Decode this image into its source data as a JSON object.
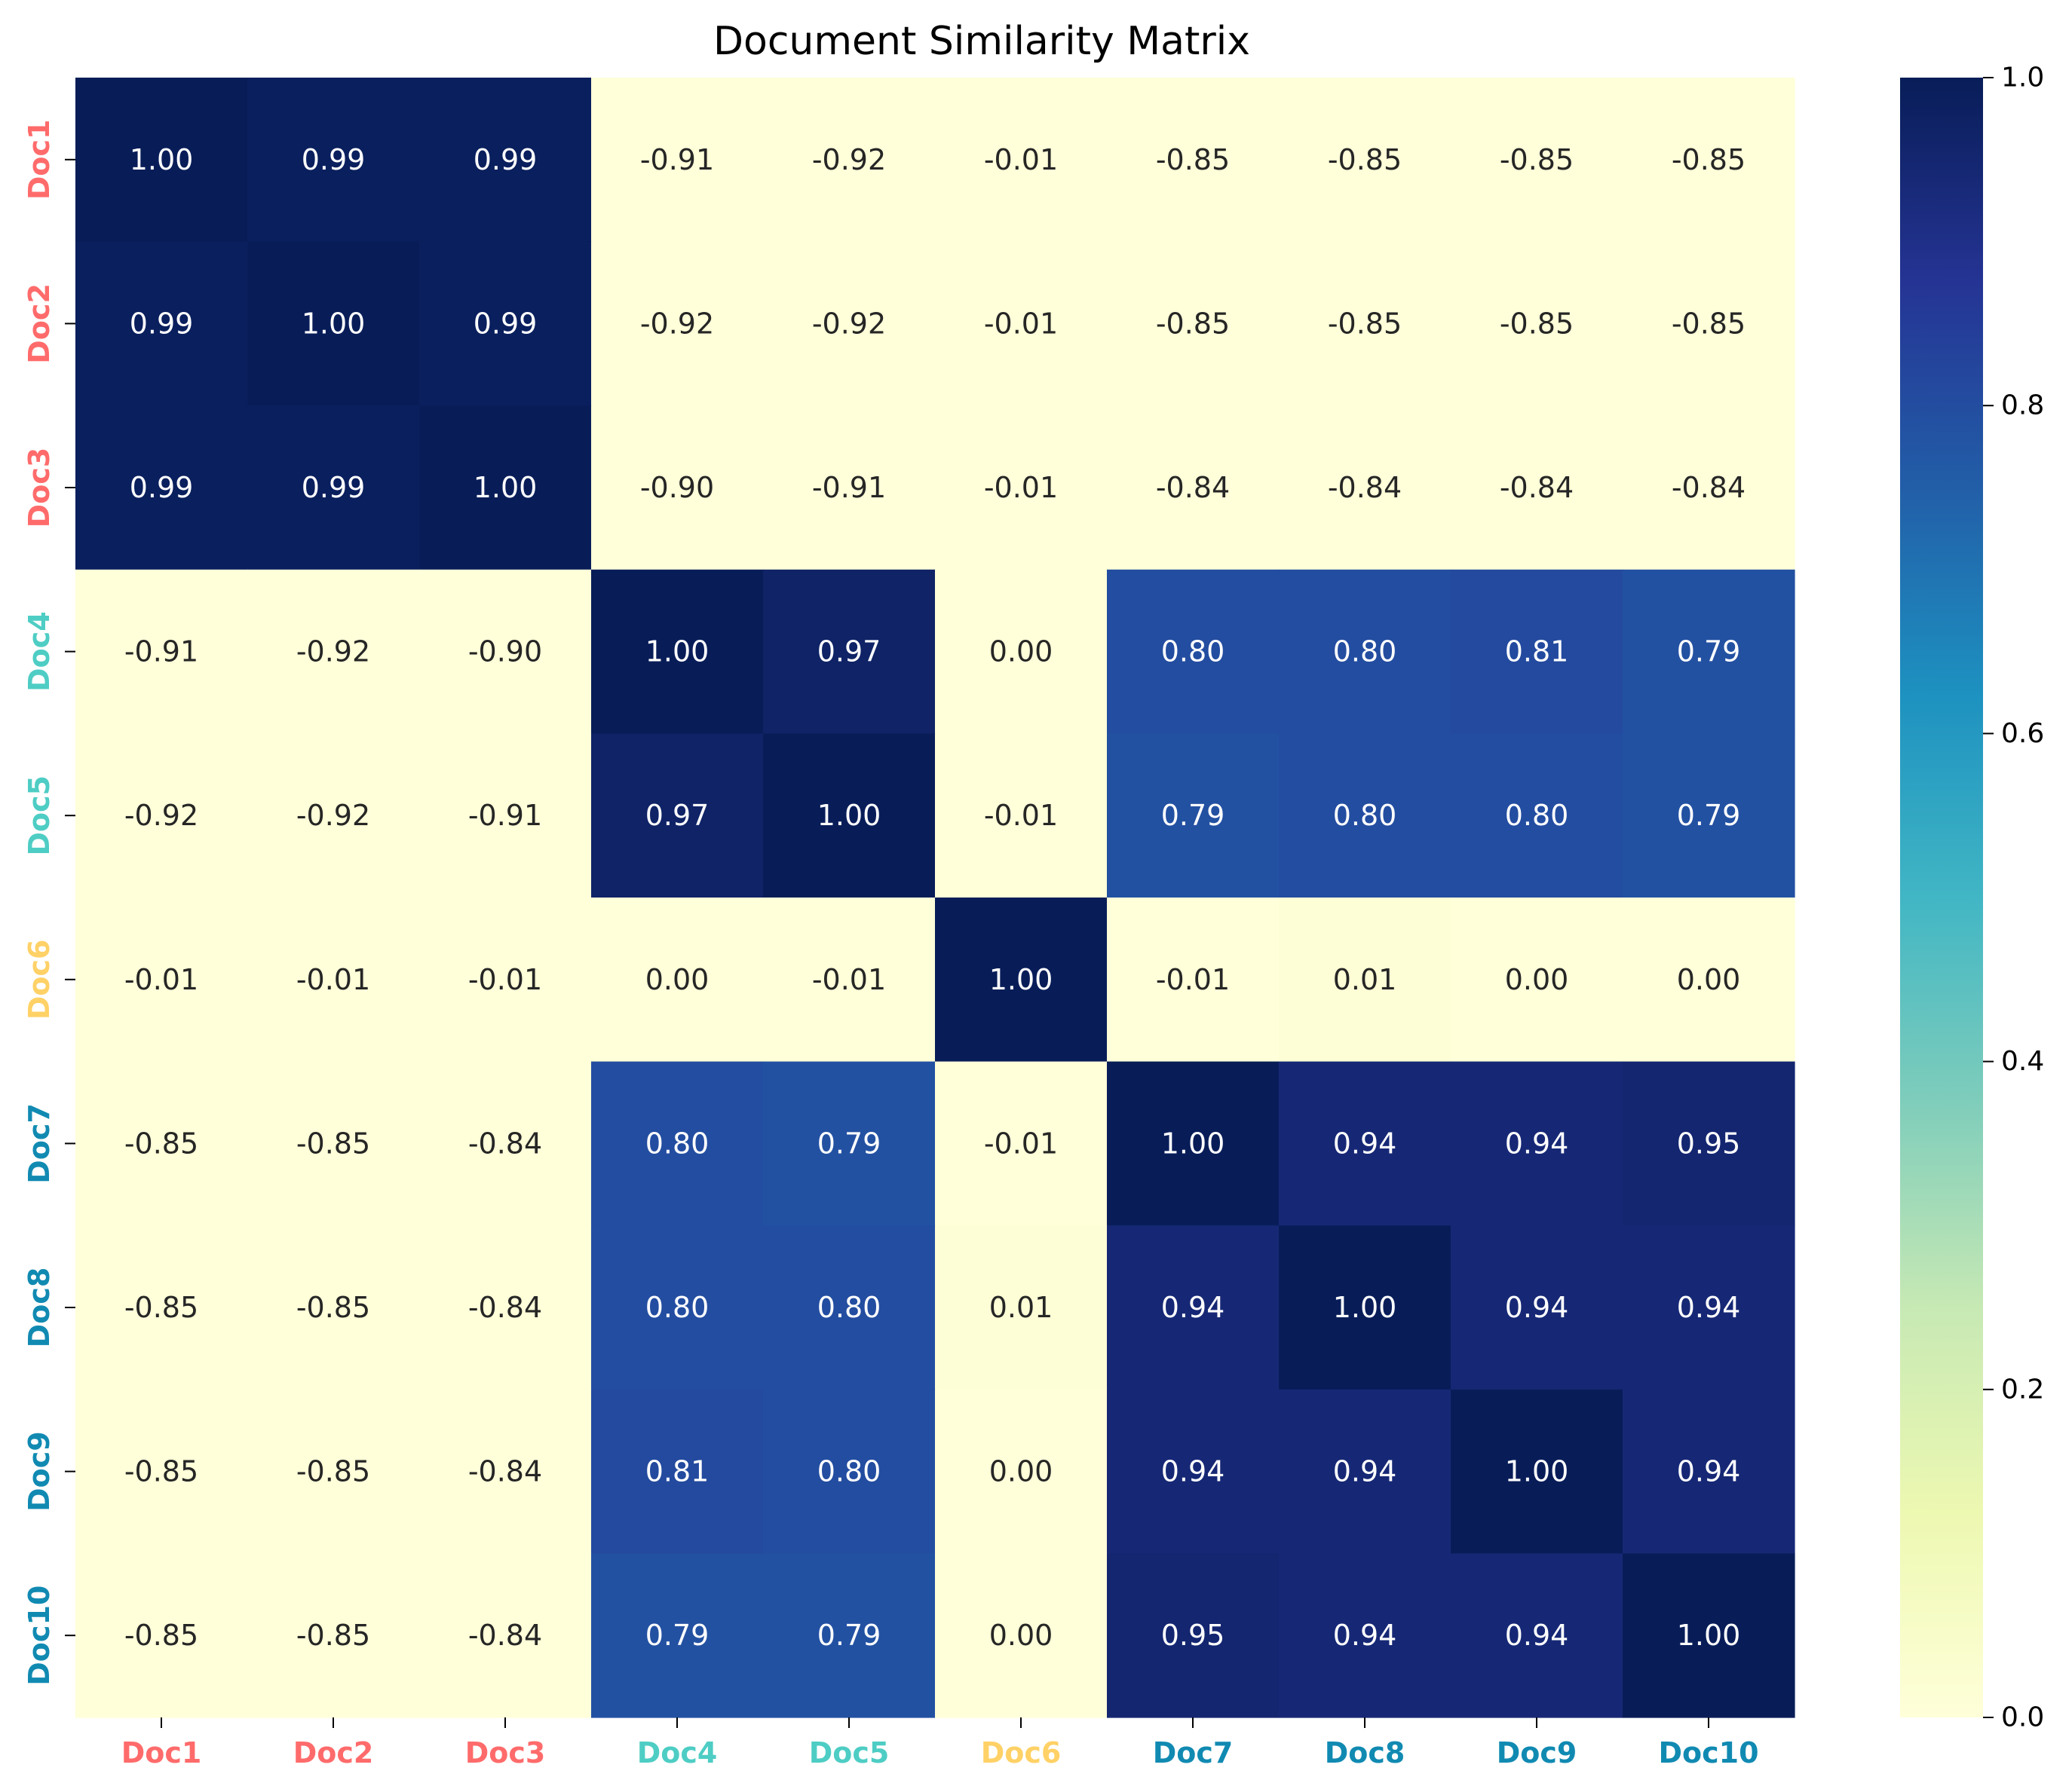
{
  "chart_data": {
    "type": "heatmap",
    "title": "Document Similarity Matrix",
    "xlabel": "",
    "ylabel": "",
    "x_categories": [
      "Doc1",
      "Doc2",
      "Doc3",
      "Doc4",
      "Doc5",
      "Doc6",
      "Doc7",
      "Doc8",
      "Doc9",
      "Doc10"
    ],
    "y_categories": [
      "Doc1",
      "Doc2",
      "Doc3",
      "Doc4",
      "Doc5",
      "Doc6",
      "Doc7",
      "Doc8",
      "Doc9",
      "Doc10"
    ],
    "values": [
      [
        1.0,
        0.99,
        0.99,
        -0.91,
        -0.92,
        -0.01,
        -0.85,
        -0.85,
        -0.85,
        -0.85
      ],
      [
        0.99,
        1.0,
        0.99,
        -0.92,
        -0.92,
        -0.01,
        -0.85,
        -0.85,
        -0.85,
        -0.85
      ],
      [
        0.99,
        0.99,
        1.0,
        -0.9,
        -0.91,
        -0.01,
        -0.84,
        -0.84,
        -0.84,
        -0.84
      ],
      [
        -0.91,
        -0.92,
        -0.9,
        1.0,
        0.97,
        -0.0,
        0.8,
        0.8,
        0.81,
        0.79
      ],
      [
        -0.92,
        -0.92,
        -0.91,
        0.97,
        1.0,
        -0.01,
        0.79,
        0.8,
        0.8,
        0.79
      ],
      [
        -0.01,
        -0.01,
        -0.01,
        -0.0,
        -0.01,
        1.0,
        -0.01,
        0.01,
        -0.0,
        -0.0
      ],
      [
        -0.85,
        -0.85,
        -0.84,
        0.8,
        0.79,
        -0.01,
        1.0,
        0.94,
        0.94,
        0.95
      ],
      [
        -0.85,
        -0.85,
        -0.84,
        0.8,
        0.8,
        0.01,
        0.94,
        1.0,
        0.94,
        0.94
      ],
      [
        -0.85,
        -0.85,
        -0.84,
        0.81,
        0.8,
        -0.0,
        0.94,
        0.94,
        1.0,
        0.94
      ],
      [
        -0.85,
        -0.85,
        -0.84,
        0.79,
        0.79,
        -0.0,
        0.95,
        0.94,
        0.94,
        1.0
      ]
    ],
    "value_format": "2 decimals",
    "color_range": [
      0.0,
      1.0
    ],
    "colormap": "YlGnBu",
    "colormap_stops": [
      "#ffffd9",
      "#edf8b1",
      "#c7e9b4",
      "#7fcdbb",
      "#41b6c4",
      "#1d91c0",
      "#225ea8",
      "#253494",
      "#081d58"
    ],
    "tick_label_colors": [
      "#ff6b6b",
      "#ff6b6b",
      "#ff6b6b",
      "#4ecdc4",
      "#4ecdc4",
      "#ffd166",
      "#118ab2",
      "#118ab2",
      "#118ab2",
      "#118ab2"
    ],
    "colorbar": {
      "ticks": [
        "0.0",
        "0.2",
        "0.4",
        "0.6",
        "0.8",
        "1.0"
      ]
    },
    "grid": false,
    "legend": "colorbar-right"
  }
}
